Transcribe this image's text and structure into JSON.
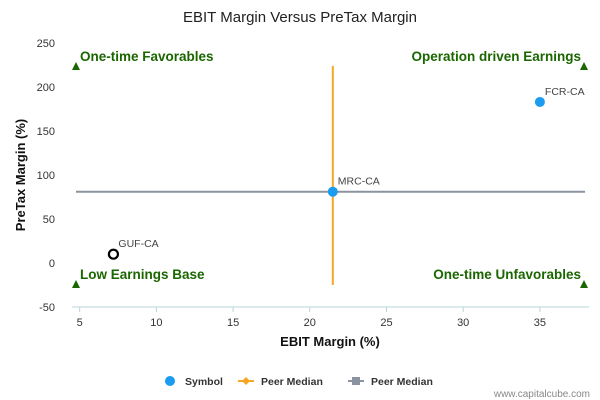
{
  "chart_data": {
    "type": "scatter",
    "title": "EBIT Margin Versus PreTax Margin",
    "xlabel": "EBIT Margin (%)",
    "ylabel": "PreTax Margin (%)",
    "xlim": [
      4.5,
      38.2
    ],
    "ylim": [
      -50,
      250
    ],
    "x_ticks": [
      5,
      10,
      15,
      20,
      25,
      30,
      35
    ],
    "y_ticks": [
      -50,
      0,
      50,
      100,
      150,
      200,
      250
    ],
    "grid": false,
    "legend_position": "bottom",
    "points": [
      {
        "label": "FCR-CA",
        "x": 35.0,
        "y": 183,
        "style": "filled",
        "color": "#1a9cf0"
      },
      {
        "label": "MRC-CA",
        "x": 21.5,
        "y": 81,
        "style": "filled",
        "color": "#1a9cf0"
      },
      {
        "label": "GUF-CA",
        "x": 7.2,
        "y": 10,
        "style": "hollow",
        "color": "#000000"
      }
    ],
    "peer_median": {
      "x": 21.5,
      "y": 81,
      "x_line_color": "#f5a623",
      "y_line_color": "#8a94a0"
    },
    "quadrant_labels": {
      "top_left": "One-time Favorables",
      "top_right": "Operation driven Earnings",
      "bottom_left": "Low Earnings Base",
      "bottom_right": "One-time Unfavorables"
    },
    "quadrant_color": "#1a6600",
    "legend": [
      {
        "label": "Symbol",
        "marker": "circle",
        "color": "#1a9cf0"
      },
      {
        "label": "Peer Median",
        "marker": "diamond-line",
        "color": "#f5a623"
      },
      {
        "label": "Peer Median",
        "marker": "square-line",
        "color": "#8a94a0"
      }
    ]
  },
  "watermark": "www.capitalcube.com"
}
